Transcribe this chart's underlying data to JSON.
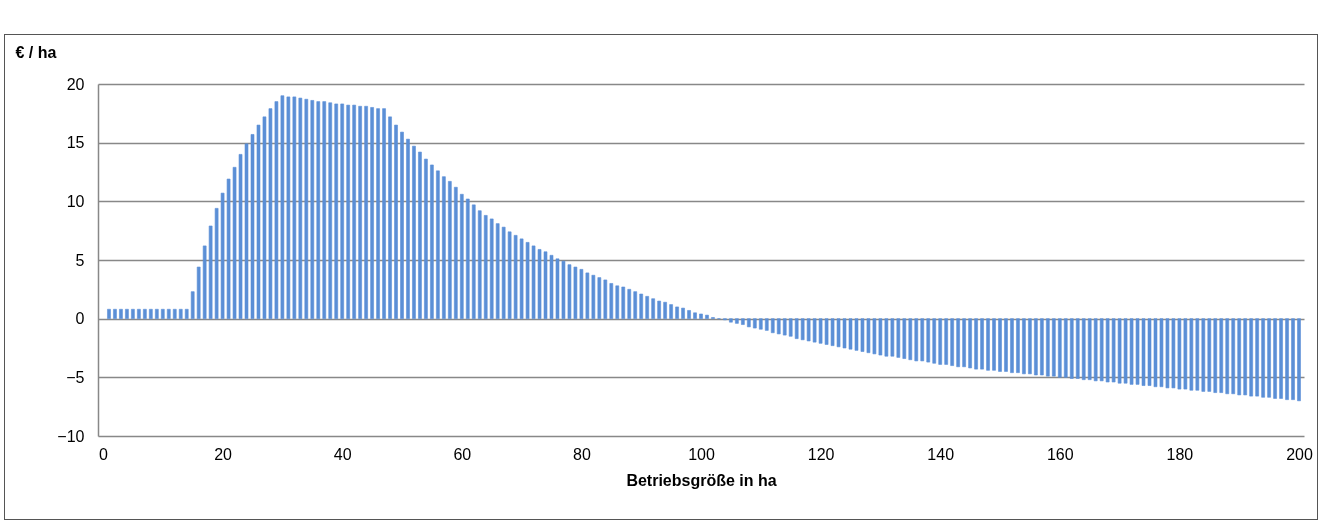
{
  "chart_data": {
    "type": "bar",
    "ylabel": "€ / ha",
    "xlabel": "Betriebsgröße in ha",
    "x": [
      1,
      2,
      3,
      4,
      5,
      6,
      7,
      8,
      9,
      10,
      11,
      12,
      13,
      14,
      15,
      16,
      17,
      18,
      19,
      20,
      21,
      22,
      23,
      24,
      25,
      26,
      27,
      28,
      29,
      30,
      31,
      32,
      33,
      34,
      35,
      36,
      37,
      38,
      39,
      40,
      41,
      42,
      43,
      44,
      45,
      46,
      47,
      48,
      49,
      50,
      51,
      52,
      53,
      54,
      55,
      56,
      57,
      58,
      59,
      60,
      61,
      62,
      63,
      64,
      65,
      66,
      67,
      68,
      69,
      70,
      71,
      72,
      73,
      74,
      75,
      76,
      77,
      78,
      79,
      80,
      81,
      82,
      83,
      84,
      85,
      86,
      87,
      88,
      89,
      90,
      91,
      92,
      93,
      94,
      95,
      96,
      97,
      98,
      99,
      100,
      101,
      102,
      103,
      104,
      105,
      106,
      107,
      108,
      109,
      110,
      111,
      112,
      113,
      114,
      115,
      116,
      117,
      118,
      119,
      120,
      121,
      122,
      123,
      124,
      125,
      126,
      127,
      128,
      129,
      130,
      131,
      132,
      133,
      134,
      135,
      136,
      137,
      138,
      139,
      140,
      141,
      142,
      143,
      144,
      145,
      146,
      147,
      148,
      149,
      150,
      151,
      152,
      153,
      154,
      155,
      156,
      157,
      158,
      159,
      160,
      161,
      162,
      163,
      164,
      165,
      166,
      167,
      168,
      169,
      170,
      171,
      172,
      173,
      174,
      175,
      176,
      177,
      178,
      179,
      180,
      181,
      182,
      183,
      184,
      185,
      186,
      187,
      188,
      189,
      190,
      191,
      192,
      193,
      194,
      195,
      196,
      197,
      198,
      199,
      200
    ],
    "series": [
      {
        "color": "#5b8fd6",
        "values": [
          0.8,
          0.8,
          0.8,
          0.8,
          0.8,
          0.8,
          0.8,
          0.8,
          0.8,
          0.8,
          0.8,
          0.8,
          0.8,
          0.8,
          2.3,
          4.4,
          6.2,
          7.9,
          9.4,
          10.7,
          11.9,
          12.9,
          14.0,
          14.9,
          15.7,
          16.5,
          17.2,
          17.9,
          18.5,
          19.0,
          18.9,
          18.9,
          18.8,
          18.7,
          18.6,
          18.5,
          18.5,
          18.4,
          18.3,
          18.3,
          18.2,
          18.2,
          18.1,
          18.1,
          18.0,
          17.9,
          17.9,
          17.2,
          16.5,
          15.9,
          15.3,
          14.7,
          14.2,
          13.6,
          13.1,
          12.6,
          12.1,
          11.7,
          11.2,
          10.6,
          10.2,
          9.7,
          9.2,
          8.8,
          8.5,
          8.1,
          7.8,
          7.4,
          7.1,
          6.8,
          6.5,
          6.2,
          5.9,
          5.7,
          5.4,
          5.1,
          4.9,
          4.6,
          4.4,
          4.2,
          3.9,
          3.7,
          3.5,
          3.3,
          3.0,
          2.8,
          2.7,
          2.5,
          2.3,
          2.1,
          1.9,
          1.7,
          1.5,
          1.4,
          1.2,
          1.0,
          0.9,
          0.7,
          0.5,
          0.4,
          0.3,
          0.1,
          0.0,
          -0.1,
          -0.3,
          -0.4,
          -0.5,
          -0.7,
          -0.8,
          -0.9,
          -1.0,
          -1.2,
          -1.3,
          -1.4,
          -1.5,
          -1.7,
          -1.8,
          -1.9,
          -2.0,
          -2.1,
          -2.2,
          -2.3,
          -2.4,
          -2.5,
          -2.6,
          -2.7,
          -2.8,
          -2.9,
          -3.0,
          -3.1,
          -3.2,
          -3.2,
          -3.3,
          -3.4,
          -3.5,
          -3.6,
          -3.6,
          -3.7,
          -3.8,
          -3.9,
          -3.9,
          -4.0,
          -4.1,
          -4.1,
          -4.2,
          -4.3,
          -4.3,
          -4.4,
          -4.4,
          -4.5,
          -4.5,
          -4.6,
          -4.6,
          -4.7,
          -4.7,
          -4.8,
          -4.8,
          -4.9,
          -4.9,
          -5.0,
          -5.0,
          -5.1,
          -5.1,
          -5.2,
          -5.2,
          -5.3,
          -5.3,
          -5.4,
          -5.4,
          -5.5,
          -5.5,
          -5.6,
          -5.6,
          -5.7,
          -5.7,
          -5.8,
          -5.8,
          -5.9,
          -5.9,
          -6.0,
          -6.0,
          -6.1,
          -6.1,
          -6.2,
          -6.2,
          -6.3,
          -6.3,
          -6.4,
          -6.4,
          -6.5,
          -6.5,
          -6.6,
          -6.6,
          -6.7,
          -6.7,
          -6.8,
          -6.8,
          -6.9,
          -6.9,
          -7.0
        ]
      }
    ],
    "xlim": [
      0,
      200
    ],
    "xticks": [
      0,
      20,
      40,
      60,
      80,
      100,
      120,
      140,
      160,
      180,
      200
    ],
    "ylim": [
      -10,
      20
    ],
    "yticks": [
      -10,
      -5,
      0,
      5,
      10,
      15,
      20
    ],
    "grid": "y"
  }
}
